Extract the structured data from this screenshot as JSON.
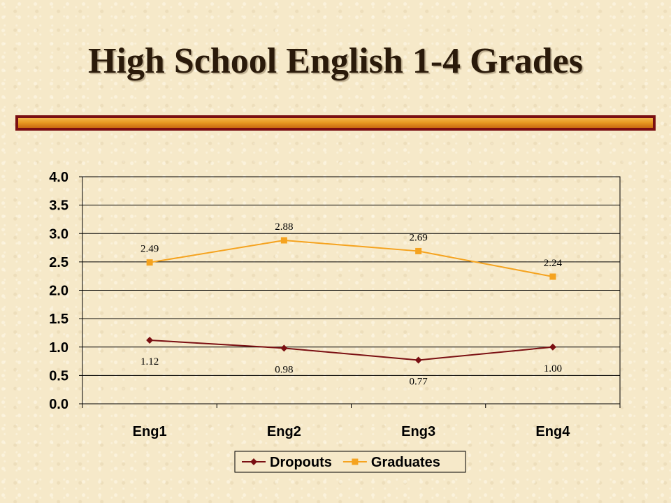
{
  "slide": {
    "title": "High School English 1-4 Grades"
  },
  "chart_data": {
    "type": "line",
    "categories": [
      "Eng1",
      "Eng2",
      "Eng3",
      "Eng4"
    ],
    "ylim": [
      0,
      4.0
    ],
    "yticks": [
      "0.0",
      "0.5",
      "1.0",
      "1.5",
      "2.0",
      "2.5",
      "3.0",
      "3.5",
      "4.0"
    ],
    "grid": true,
    "legend": "bottom",
    "series": [
      {
        "name": "Dropouts",
        "values": [
          1.12,
          0.98,
          0.77,
          1.0
        ],
        "labels": [
          "1.12",
          "0.98",
          "0.77",
          "1.00"
        ],
        "color": "#7a0f12",
        "marker": "diamond"
      },
      {
        "name": "Graduates",
        "values": [
          2.49,
          2.88,
          2.69,
          2.24
        ],
        "labels": [
          "2.49",
          "2.88",
          "2.69",
          "2.24"
        ],
        "color": "#f5a31f",
        "marker": "square"
      }
    ]
  }
}
